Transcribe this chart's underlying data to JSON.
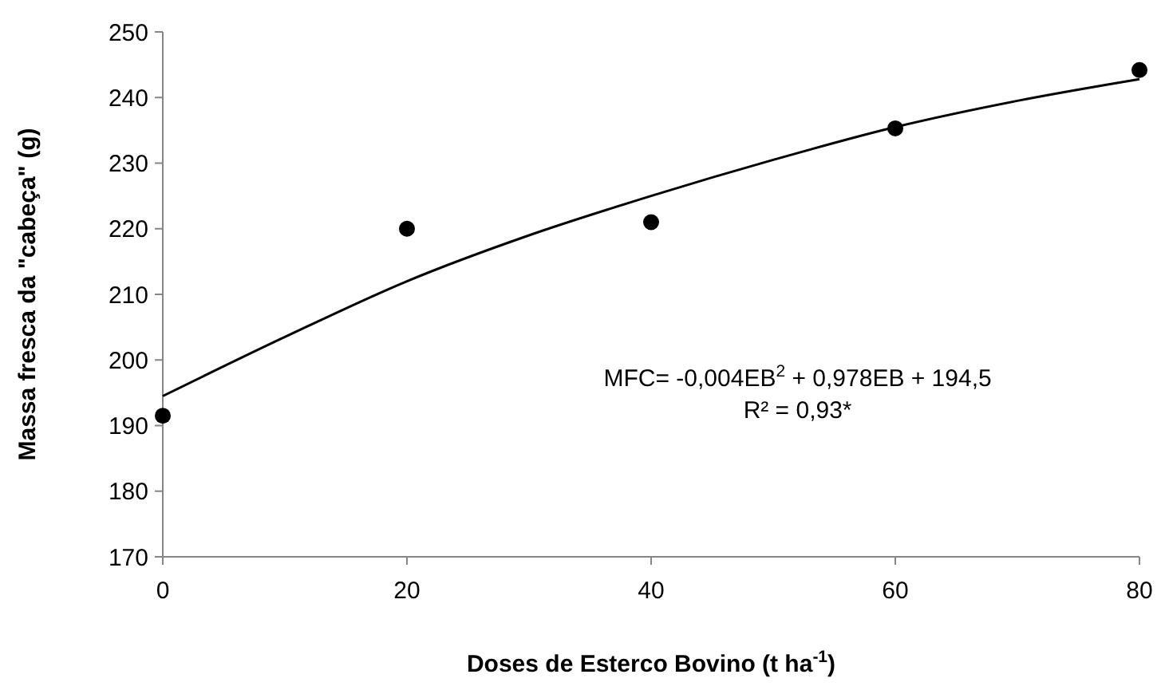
{
  "chart_data": {
    "type": "scatter",
    "xlabel": "Doses de Esterco Bovino (t ha$^{-1}$)",
    "ylabel": "Massa fresca da \"cabeça\" (g)",
    "xlim": [
      0,
      80
    ],
    "xticks": [
      0,
      20,
      40,
      60,
      80
    ],
    "ylim": [
      170,
      250
    ],
    "yticks": [
      170,
      180,
      190,
      200,
      210,
      220,
      230,
      240,
      250
    ],
    "grid": false,
    "marker": "circle",
    "series": [
      {
        "color": "#000000",
        "x": [
          0,
          20,
          40,
          60,
          80
        ],
        "values": [
          191.5,
          220,
          221,
          235.3,
          244.2
        ]
      },
      {
        "type": "line",
        "color": "#000000",
        "line_style": "solid",
        "marker": "none",
        "x": [
          0,
          10,
          20,
          30,
          40,
          50,
          60,
          70,
          80
        ],
        "values": [
          194.5,
          203.5,
          212,
          219,
          225,
          230.5,
          235.5,
          239.5,
          242.8
        ]
      }
    ],
    "annotations": [
      "MFC= -0,004EB$^{2}$  + 0,978EB  + 194,5",
      "R² = 0,93*"
    ]
  }
}
